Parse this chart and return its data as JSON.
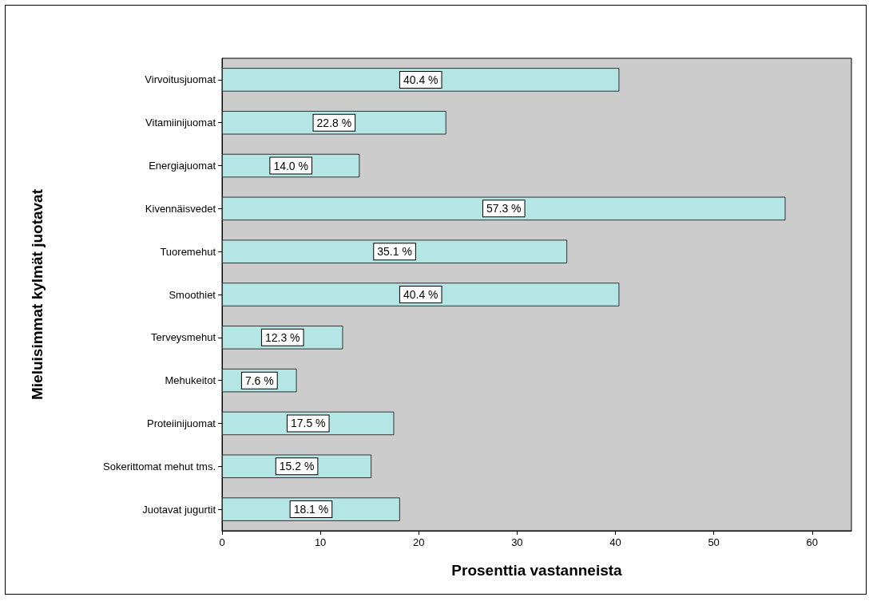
{
  "chart_data": {
    "type": "bar",
    "orientation": "horizontal",
    "xlabel": "Prosenttia vastanneista",
    "ylabel": "Mieluisimmat kylmät juotavat",
    "categories": [
      "Virvoitusjuomat",
      "Vitamiinijuomat",
      "Energiajuomat",
      "Kivennäisvedet",
      "Tuoremehut",
      "Smoothiet",
      "Terveysmehut",
      "Mehukeitot",
      "Proteiinijuomat",
      "Sokerittomat mehut tms.",
      "Juotavat jugurtit"
    ],
    "values": [
      40.4,
      22.8,
      14.0,
      57.3,
      35.1,
      40.4,
      12.3,
      7.6,
      17.5,
      15.2,
      18.1
    ],
    "value_labels": [
      "40.4 %",
      "22.8 %",
      "14.0 %",
      "57.3 %",
      "35.1 %",
      "40.4 %",
      "12.3 %",
      "7.6 %",
      "17.5 %",
      "15.2 %",
      "18.1 %"
    ],
    "color": "#b4e6e6",
    "xlim": [
      0,
      64
    ],
    "xticks": [
      0,
      10,
      20,
      30,
      40,
      50,
      60
    ],
    "grid": false
  }
}
